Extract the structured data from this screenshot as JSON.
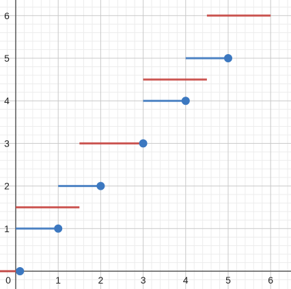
{
  "chart_data": {
    "type": "line",
    "xlim": [
      0,
      6.4
    ],
    "ylim": [
      0,
      6.4
    ],
    "x_ticks": [
      "0",
      "1",
      "2",
      "3",
      "4",
      "5",
      "6"
    ],
    "y_ticks": [
      "1",
      "2",
      "3",
      "4",
      "5",
      "6"
    ],
    "grid": true,
    "minor_grid": true,
    "series": [
      {
        "color": "#3c78c0",
        "segments": [
          {
            "x": [
              0,
              1
            ],
            "y": [
              1,
              1
            ]
          },
          {
            "x": [
              1,
              2
            ],
            "y": [
              2,
              2
            ]
          },
          {
            "x": [
              3,
              4
            ],
            "y": [
              4,
              4
            ]
          },
          {
            "x": [
              4,
              5
            ],
            "y": [
              5,
              5
            ]
          }
        ],
        "points": [
          {
            "x": 0.1,
            "y": 0
          },
          {
            "x": 1,
            "y": 1
          },
          {
            "x": 2,
            "y": 2
          },
          {
            "x": 3,
            "y": 3
          },
          {
            "x": 4,
            "y": 4
          },
          {
            "x": 5,
            "y": 5
          }
        ]
      },
      {
        "color": "#c74440",
        "segments": [
          {
            "x": [
              -0.4,
              0.1
            ],
            "y": [
              0,
              0
            ]
          },
          {
            "x": [
              0,
              1.5
            ],
            "y": [
              1.5,
              1.5
            ]
          },
          {
            "x": [
              1.5,
              3
            ],
            "y": [
              3,
              3
            ]
          },
          {
            "x": [
              3,
              4.5
            ],
            "y": [
              4.5,
              4.5
            ]
          },
          {
            "x": [
              4.5,
              6
            ],
            "y": [
              6,
              6
            ]
          }
        ],
        "points": []
      }
    ]
  }
}
